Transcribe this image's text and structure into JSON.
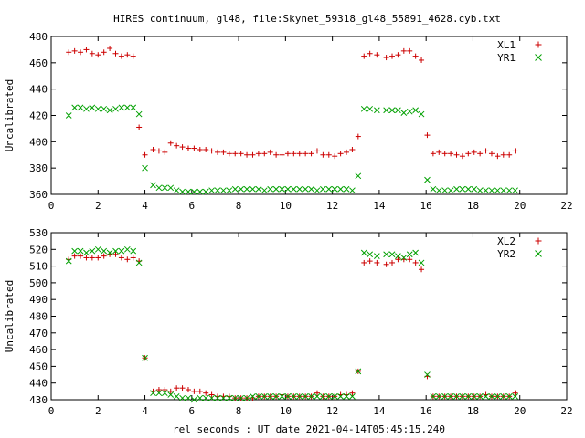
{
  "chart_data": [
    {
      "type": "scatter",
      "title": "HIRES continuum, gl48, file:Skynet_59318_gl48_55891_4628.cyb.txt",
      "xlabel": "",
      "ylabel": "Uncalibrated",
      "xlim": [
        0,
        22
      ],
      "ylim": [
        360,
        480
      ],
      "xticks": [
        0,
        2,
        4,
        6,
        8,
        10,
        12,
        14,
        16,
        18,
        20,
        22
      ],
      "yticks": [
        360,
        380,
        400,
        420,
        440,
        460,
        480
      ],
      "grid": false,
      "legend": "top-right",
      "series": [
        {
          "name": "XL1",
          "marker": "plus",
          "color": "#cc0000",
          "x": [
            0.75,
            1.0,
            1.25,
            1.5,
            1.75,
            2.0,
            2.25,
            2.5,
            2.75,
            3.0,
            3.25,
            3.5,
            3.75,
            4.0,
            4.35,
            4.6,
            4.85,
            5.1,
            5.35,
            5.6,
            5.85,
            6.1,
            6.35,
            6.6,
            6.85,
            7.1,
            7.35,
            7.6,
            7.85,
            8.1,
            8.35,
            8.6,
            8.85,
            9.1,
            9.35,
            9.6,
            9.85,
            10.1,
            10.35,
            10.6,
            10.85,
            11.1,
            11.35,
            11.6,
            11.85,
            12.1,
            12.35,
            12.6,
            12.85,
            13.1,
            13.35,
            13.6,
            13.9,
            14.3,
            14.55,
            14.8,
            15.05,
            15.3,
            15.55,
            15.8,
            16.05,
            16.3,
            16.55,
            16.8,
            17.05,
            17.3,
            17.55,
            17.8,
            18.05,
            18.3,
            18.55,
            18.8,
            19.05,
            19.3,
            19.55,
            19.8
          ],
          "y": [
            468,
            469,
            468,
            470,
            467,
            466,
            468,
            471,
            467,
            465,
            466,
            465,
            411,
            390,
            394,
            393,
            392,
            399,
            397,
            396,
            395,
            395,
            394,
            394,
            393,
            392,
            392,
            391,
            391,
            391,
            390,
            390,
            391,
            391,
            392,
            390,
            390,
            391,
            391,
            391,
            391,
            391,
            393,
            390,
            390,
            389,
            391,
            392,
            394,
            404,
            465,
            467,
            466,
            464,
            465,
            466,
            469,
            469,
            465,
            462,
            405,
            391,
            392,
            391,
            391,
            390,
            389,
            391,
            392,
            391,
            393,
            391,
            389,
            390,
            390,
            393
          ],
          "note_x_alignment": ""
        },
        {
          "name": "YR1",
          "marker": "cross",
          "color": "#00a000",
          "x": [
            0.75,
            1.0,
            1.25,
            1.5,
            1.75,
            2.0,
            2.25,
            2.5,
            2.75,
            3.0,
            3.25,
            3.5,
            3.75,
            4.0,
            4.35,
            4.6,
            4.85,
            5.1,
            5.35,
            5.6,
            5.85,
            6.1,
            6.35,
            6.6,
            6.85,
            7.1,
            7.35,
            7.6,
            7.85,
            8.1,
            8.35,
            8.6,
            8.85,
            9.1,
            9.35,
            9.6,
            9.85,
            10.1,
            10.35,
            10.6,
            10.85,
            11.1,
            11.35,
            11.6,
            11.85,
            12.1,
            12.35,
            12.6,
            12.85,
            13.1,
            13.35,
            13.6,
            13.9,
            14.3,
            14.55,
            14.8,
            15.05,
            15.3,
            15.55,
            15.8,
            16.05,
            16.3,
            16.55,
            16.8,
            17.05,
            17.3,
            17.55,
            17.8,
            18.05,
            18.3,
            18.55,
            18.8,
            19.05,
            19.3,
            19.55,
            19.8
          ],
          "y": [
            420,
            426,
            426,
            425,
            426,
            425,
            425,
            424,
            425,
            426,
            426,
            426,
            421,
            380,
            367,
            365,
            365,
            365,
            363,
            362,
            362,
            362,
            362,
            362,
            363,
            363,
            363,
            363,
            364,
            364,
            364,
            364,
            364,
            363,
            364,
            364,
            364,
            364,
            364,
            364,
            364,
            364,
            363,
            364,
            364,
            364,
            364,
            364,
            363,
            374,
            425,
            425,
            424,
            424,
            424,
            424,
            422,
            423,
            424,
            421,
            371,
            364,
            363,
            363,
            363,
            364,
            364,
            364,
            364,
            363,
            363,
            363,
            363,
            363,
            363,
            363
          ]
        }
      ]
    },
    {
      "type": "scatter",
      "title": "",
      "xlabel": "rel seconds : UT date 2021-04-14T05:45:15.240",
      "ylabel": "Uncalibrated",
      "xlim": [
        0,
        22
      ],
      "ylim": [
        430,
        530
      ],
      "xticks": [
        0,
        2,
        4,
        6,
        8,
        10,
        12,
        14,
        16,
        18,
        20,
        22
      ],
      "yticks": [
        430,
        440,
        450,
        460,
        470,
        480,
        490,
        500,
        510,
        520,
        530
      ],
      "grid": false,
      "legend": "top-right",
      "series": [
        {
          "name": "XL2",
          "marker": "plus",
          "color": "#cc0000",
          "x": [
            0.75,
            1.0,
            1.25,
            1.5,
            1.75,
            2.0,
            2.25,
            2.5,
            2.75,
            3.0,
            3.25,
            3.5,
            3.75,
            4.0,
            4.35,
            4.6,
            4.85,
            5.1,
            5.35,
            5.6,
            5.85,
            6.1,
            6.35,
            6.6,
            6.85,
            7.1,
            7.35,
            7.6,
            7.85,
            8.1,
            8.35,
            8.6,
            8.85,
            9.1,
            9.35,
            9.6,
            9.85,
            10.1,
            10.35,
            10.6,
            10.85,
            11.1,
            11.35,
            11.6,
            11.85,
            12.1,
            12.35,
            12.6,
            12.85,
            13.1,
            13.35,
            13.6,
            13.9,
            14.3,
            14.55,
            14.8,
            15.05,
            15.3,
            15.55,
            15.8,
            16.05,
            16.3,
            16.55,
            16.8,
            17.05,
            17.3,
            17.55,
            17.8,
            18.05,
            18.3,
            18.55,
            18.8,
            19.05,
            19.3,
            19.55,
            19.8
          ],
          "y": [
            514,
            516,
            516,
            515,
            515,
            515,
            516,
            517,
            517,
            515,
            514,
            515,
            513,
            455,
            435,
            436,
            436,
            435,
            437,
            437,
            436,
            435,
            435,
            434,
            433,
            432,
            432,
            432,
            431,
            431,
            431,
            431,
            432,
            432,
            432,
            432,
            433,
            432,
            432,
            432,
            432,
            432,
            434,
            432,
            432,
            432,
            433,
            433,
            434,
            447,
            512,
            513,
            512,
            511,
            512,
            514,
            514,
            514,
            512,
            508,
            444,
            432,
            432,
            432,
            432,
            432,
            432,
            432,
            432,
            432,
            433,
            432,
            432,
            432,
            432,
            434
          ]
        },
        {
          "name": "YR2",
          "marker": "cross",
          "color": "#00a000",
          "x": [
            0.75,
            1.0,
            1.25,
            1.5,
            1.75,
            2.0,
            2.25,
            2.5,
            2.75,
            3.0,
            3.25,
            3.5,
            3.75,
            4.0,
            4.35,
            4.6,
            4.85,
            5.1,
            5.35,
            5.6,
            5.85,
            6.1,
            6.35,
            6.6,
            6.85,
            7.1,
            7.35,
            7.6,
            7.85,
            8.1,
            8.35,
            8.6,
            8.85,
            9.1,
            9.35,
            9.6,
            9.85,
            10.1,
            10.35,
            10.6,
            10.85,
            11.1,
            11.35,
            11.6,
            11.85,
            12.1,
            12.35,
            12.6,
            12.85,
            13.1,
            13.35,
            13.6,
            13.9,
            14.3,
            14.55,
            14.8,
            15.05,
            15.3,
            15.55,
            15.8,
            16.05,
            16.3,
            16.55,
            16.8,
            17.05,
            17.3,
            17.55,
            17.8,
            18.05,
            18.3,
            18.55,
            18.8,
            19.05,
            19.3,
            19.55,
            19.8
          ],
          "y": [
            513,
            519,
            519,
            518,
            519,
            520,
            519,
            518,
            519,
            519,
            520,
            519,
            512,
            455,
            434,
            434,
            434,
            433,
            432,
            431,
            431,
            430,
            431,
            431,
            431,
            431,
            431,
            431,
            431,
            431,
            431,
            432,
            432,
            432,
            432,
            432,
            432,
            432,
            432,
            432,
            432,
            432,
            432,
            432,
            432,
            432,
            432,
            432,
            432,
            447,
            518,
            517,
            516,
            517,
            517,
            516,
            515,
            517,
            518,
            512,
            445,
            432,
            432,
            432,
            432,
            432,
            432,
            432,
            432,
            432,
            432,
            432,
            432,
            432,
            432,
            432
          ]
        }
      ]
    }
  ]
}
